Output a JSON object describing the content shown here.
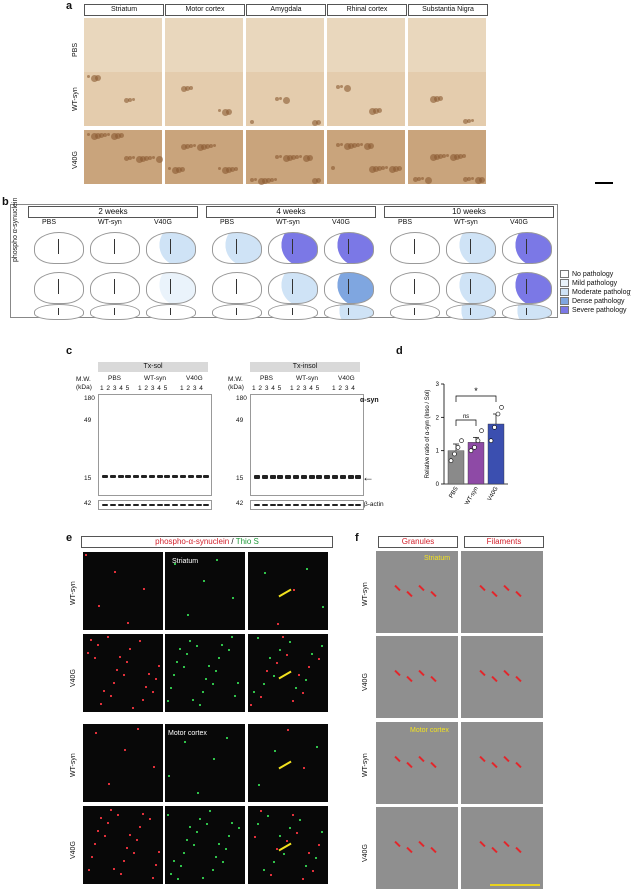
{
  "panel_a": {
    "letter": "a",
    "columns": [
      "Striatum",
      "Motor cortex",
      "Amygdala",
      "Rhinal cortex",
      "Substantia Nigra"
    ],
    "rows": [
      "PBS",
      "WT-syn",
      "V40G"
    ]
  },
  "panel_b": {
    "letter": "b",
    "timepoints": [
      "2 weeks",
      "4 weeks",
      "10 weeks"
    ],
    "groups": [
      "PBS",
      "WT-syn",
      "V40G"
    ],
    "row_label": "phospho α-synuclein",
    "legend": [
      {
        "label": "No pathology",
        "color": "#ffffff"
      },
      {
        "label": "Mild pathology",
        "color": "#eaf3fb"
      },
      {
        "label": "Moderate pathology",
        "color": "#cfe3f6"
      },
      {
        "label": "Dense pathology",
        "color": "#7fa6e0"
      },
      {
        "label": "Severe pathology",
        "color": "#7b78e6"
      }
    ]
  },
  "panel_c": {
    "letter": "c",
    "blot1_title": "Tx-sol",
    "blot2_title": "Tx-insol",
    "mw_label": "M.W.",
    "kda_label": "(kDa)",
    "groups": [
      "PBS",
      "WT-syn",
      "V40G"
    ],
    "lanes_pbs": "1 2 3 4 5",
    "lanes_wt": "1 2 3 4 5",
    "lanes_v40": "1 2 3 4",
    "markers": [
      "180",
      "49",
      "15",
      "42"
    ],
    "target": "α-syn",
    "loading": "β-actin"
  },
  "panel_d": {
    "letter": "d",
    "significance": "*",
    "ns": "ns",
    "chart_data": {
      "type": "bar",
      "categories": [
        "PBS",
        "WT-syn",
        "V40G"
      ],
      "values": [
        1.0,
        1.25,
        1.8
      ],
      "errors": [
        0.2,
        0.15,
        0.3
      ],
      "points": [
        [
          0.7,
          0.9,
          1.1,
          1.3
        ],
        [
          1.0,
          1.1,
          1.3,
          1.6
        ],
        [
          1.3,
          1.7,
          2.1,
          2.3
        ]
      ],
      "colors": [
        "#8a8a8a",
        "#8e4aa6",
        "#3b4fb0"
      ],
      "ylabel": "Relative ratio of α-syn (Inso / Sol)",
      "ylim": [
        0,
        3
      ],
      "yticks": [
        "0",
        "1",
        "2",
        "3"
      ]
    }
  },
  "panel_e": {
    "letter": "e",
    "title_red": "phospho-α-synuclein",
    "title_sep": " / ",
    "title_green": "Thio S",
    "region1": "Striatum",
    "region2": "Motor cortex",
    "rows": [
      "WT-syn",
      "V40G",
      "WT-syn",
      "V40G"
    ]
  },
  "panel_f": {
    "letter": "f",
    "col1": "Granules",
    "col2": "Filaments",
    "region1": "Striatum",
    "region2": "Motor cortex",
    "rows": [
      "WT-syn",
      "V40G",
      "WT-syn",
      "V40G"
    ]
  }
}
